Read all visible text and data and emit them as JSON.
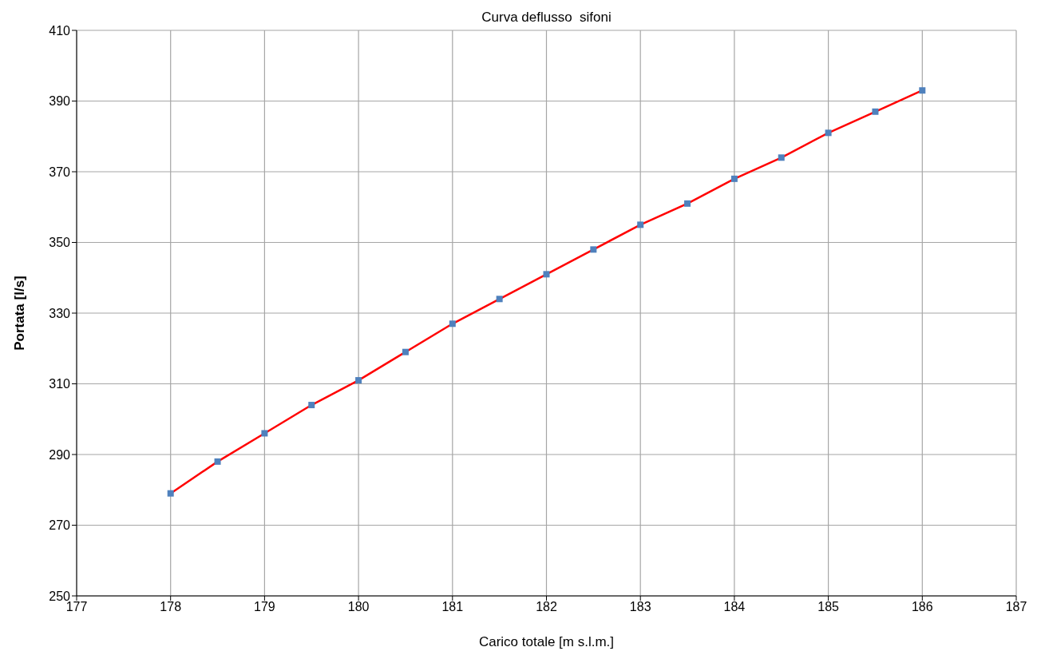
{
  "chart_data": {
    "type": "line",
    "title": "Curva deflusso  sifoni",
    "xlabel": "Carico totale [m s.l.m.]",
    "ylabel": "Portata [l/s]",
    "x": [
      178,
      178.5,
      179,
      179.5,
      180,
      180.5,
      181,
      181.5,
      182,
      182.5,
      183,
      183.5,
      184,
      184.5,
      185,
      185.5,
      186
    ],
    "series": [
      {
        "color": "#ff0000",
        "marker": "none",
        "values": [
          279,
          288,
          296,
          304,
          311,
          319,
          327,
          334,
          341,
          348,
          355,
          361,
          368,
          374,
          381,
          387,
          393
        ]
      },
      {
        "type": "scatter",
        "color": "#4f81bd",
        "marker": "square",
        "values": [
          279,
          288,
          296,
          304,
          311,
          319,
          327,
          334,
          341,
          348,
          355,
          361,
          368,
          374,
          381,
          387,
          393
        ]
      }
    ],
    "xlim": [
      177,
      187
    ],
    "xticks": [
      177,
      178,
      179,
      180,
      181,
      182,
      183,
      184,
      185,
      186,
      187
    ],
    "ylim": [
      250,
      410
    ],
    "yticks": [
      250,
      270,
      290,
      310,
      330,
      350,
      370,
      390,
      410
    ],
    "grid": true,
    "legend": false
  }
}
